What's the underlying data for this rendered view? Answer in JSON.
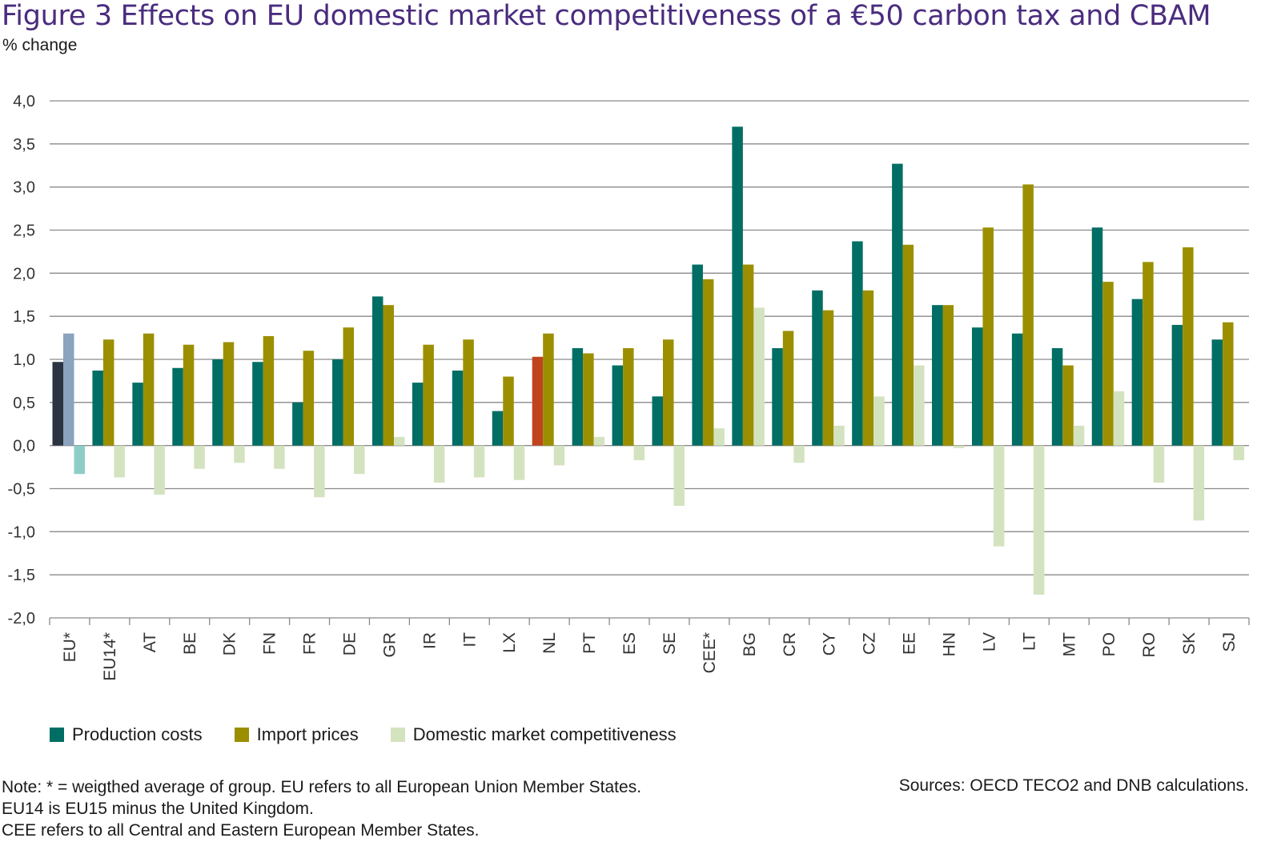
{
  "header": {
    "title": "Figure 3  Effects on EU domestic market competitiveness of a €50 carbon tax and CBAM",
    "subtitle": "% change"
  },
  "legend": {
    "items": [
      {
        "label": "Production costs",
        "color": "#006e64"
      },
      {
        "label": "Import prices",
        "color": "#9b8f00"
      },
      {
        "label": "Domestic market competitiveness",
        "color": "#d4e3bf"
      }
    ]
  },
  "footer": {
    "note_lines": [
      "Note: * = weigthed average of group. EU refers to all European Union Member States.",
      "EU14 is EU15 minus the United Kingdom.",
      "CEE refers to all Central and Eastern European Member States."
    ],
    "sources": "Sources: OECD TECO2 and DNB calculations."
  },
  "chart_data": {
    "type": "bar",
    "ylim": [
      -2.0,
      4.0
    ],
    "yticks": [
      "4,0",
      "3,5",
      "3,0",
      "2,5",
      "2,0",
      "1,5",
      "1,0",
      "0,5",
      "0,0",
      "-0,5",
      "-1,0",
      "-1,5",
      "-2,0"
    ],
    "ytick_values": [
      4.0,
      3.5,
      3.0,
      2.5,
      2.0,
      1.5,
      1.0,
      0.5,
      0.0,
      -0.5,
      -1.0,
      -1.5,
      -2.0
    ],
    "grid": true,
    "legend_position": "bottom-left",
    "categories": [
      "EU*",
      "EU14*",
      "AT",
      "BE",
      "DK",
      "FN",
      "FR",
      "DE",
      "GR",
      "IR",
      "IT",
      "LX",
      "NL",
      "PT",
      "ES",
      "SE",
      "CEE*",
      "BG",
      "CR",
      "CY",
      "CZ",
      "EE",
      "HN",
      "LV",
      "LT",
      "MT",
      "PO",
      "RO",
      "SK",
      "SJ"
    ],
    "series": [
      {
        "name": "Production costs",
        "color": "#006e64",
        "values": [
          0.97,
          0.87,
          0.73,
          0.9,
          1.0,
          0.97,
          0.5,
          1.0,
          1.73,
          0.73,
          0.87,
          0.4,
          1.03,
          1.13,
          0.93,
          0.57,
          2.1,
          3.7,
          1.13,
          1.8,
          2.37,
          3.27,
          1.63,
          1.37,
          1.3,
          1.13,
          2.53,
          1.7,
          1.4,
          1.23
        ]
      },
      {
        "name": "Import prices",
        "color": "#9b8f00",
        "values": [
          1.3,
          1.23,
          1.3,
          1.17,
          1.2,
          1.27,
          1.1,
          1.37,
          1.63,
          1.17,
          1.23,
          0.8,
          1.3,
          1.07,
          1.13,
          1.23,
          1.93,
          2.1,
          1.33,
          1.57,
          1.8,
          2.33,
          1.63,
          2.53,
          3.03,
          0.93,
          1.9,
          2.13,
          2.3,
          1.43
        ]
      },
      {
        "name": "Domestic market competitiveness",
        "color": "#d4e3bf",
        "values": [
          -0.33,
          -0.37,
          -0.57,
          -0.27,
          -0.2,
          -0.27,
          -0.6,
          -0.33,
          0.1,
          -0.43,
          -0.37,
          -0.4,
          -0.23,
          0.1,
          -0.17,
          -0.7,
          0.2,
          1.6,
          -0.2,
          0.23,
          0.57,
          0.93,
          -0.03,
          -1.17,
          -1.73,
          0.23,
          0.63,
          -0.43,
          -0.87,
          -0.17
        ]
      }
    ],
    "highlight_colors": {
      "EU_production": "#2b3440",
      "EU_import": "#8aa3bf",
      "EU_domestic": "#8ecdc6",
      "NL_production": "#c0441e"
    }
  }
}
